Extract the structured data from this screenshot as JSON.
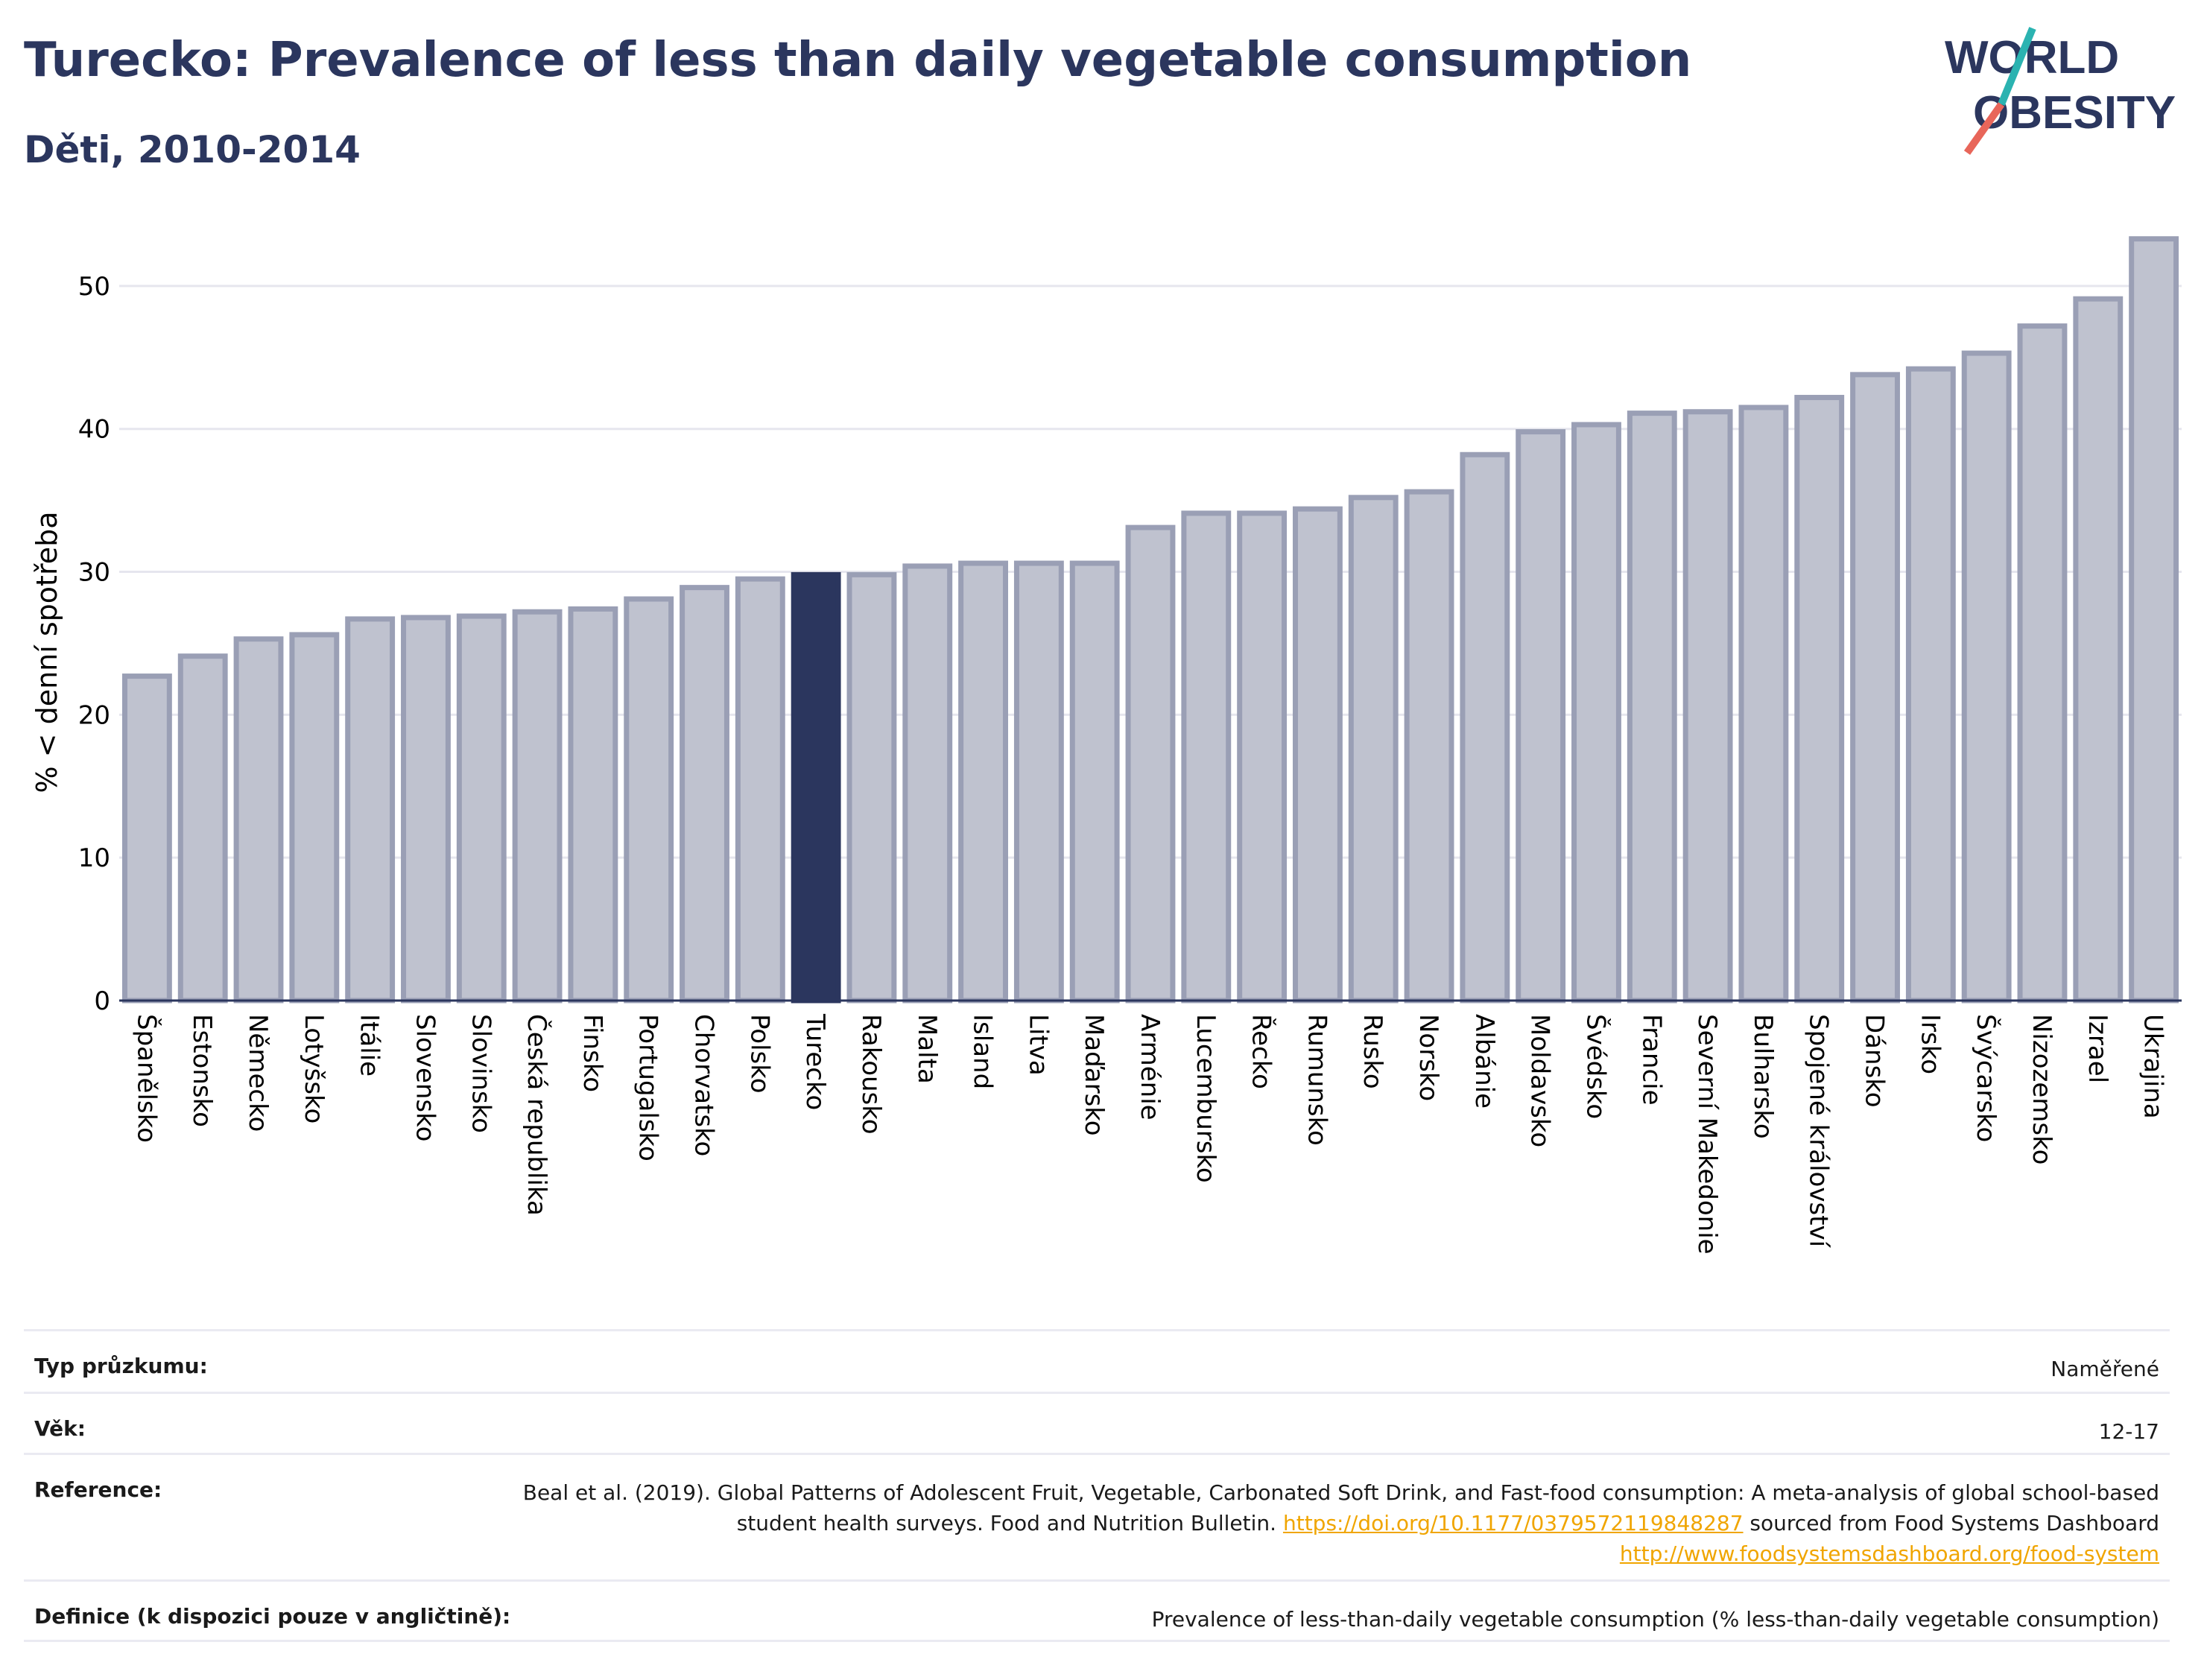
{
  "header": {
    "title": "Turecko: Prevalence of less than daily vegetable consumption",
    "subtitle": "Děti, 2010-2014",
    "logo_line1": "WORLD",
    "logo_line2": "OBESITY"
  },
  "colors": {
    "bar": "#bfc2cf",
    "bar_outline": "#9a9fb5",
    "highlight": "#2b365e",
    "grid": "#e6e6ee",
    "logo_teal": "#2bb3b1",
    "logo_red": "#e8665a"
  },
  "chart_data": {
    "type": "bar",
    "title": "Turecko: Prevalence of less than daily vegetable consumption",
    "subtitle": "Děti, 2010-2014",
    "ylabel": "% < denní spotřeba",
    "xlabel": "",
    "ylim": [
      0,
      55
    ],
    "yticks": [
      0,
      10,
      20,
      30,
      40,
      50
    ],
    "grid": true,
    "highlight": "Turecko",
    "categories": [
      "Španělsko",
      "Estonsko",
      "Německo",
      "Lotyšsko",
      "Itálie",
      "Slovensko",
      "Slovinsko",
      "Česká republika",
      "Finsko",
      "Portugalsko",
      "Chorvatsko",
      "Polsko",
      "Turecko",
      "Rakousko",
      "Malta",
      "Island",
      "Litva",
      "Maďarsko",
      "Arménie",
      "Lucembursko",
      "Řecko",
      "Rumunsko",
      "Rusko",
      "Norsko",
      "Albánie",
      "Moldavsko",
      "Švédsko",
      "Francie",
      "Severní Makedonie",
      "Bulharsko",
      "Spojené království",
      "Dánsko",
      "Irsko",
      "Švýcarsko",
      "Nizozemsko",
      "Izrael",
      "Ukrajina"
    ],
    "values": [
      22.7,
      24.1,
      25.3,
      25.6,
      26.7,
      26.8,
      26.9,
      27.2,
      27.4,
      28.1,
      28.9,
      29.5,
      29.8,
      29.8,
      30.4,
      30.6,
      30.6,
      30.6,
      33.1,
      34.1,
      34.1,
      34.4,
      35.2,
      35.6,
      38.2,
      39.8,
      40.3,
      41.1,
      41.2,
      41.5,
      42.2,
      43.8,
      44.2,
      45.3,
      47.2,
      49.1,
      53.3
    ]
  },
  "info": {
    "survey_label": "Typ průzkumu:",
    "survey_value": "Naměřené",
    "age_label": "Věk:",
    "age_value": "12-17",
    "reference_label": "Reference:",
    "reference_text1": "Beal et al. (2019). Global Patterns of Adolescent Fruit, Vegetable, Carbonated Soft Drink, and Fast-food consumption: A meta-analysis of global school-based student health surveys. Food and Nutrition Bulletin. ",
    "reference_link1": "https://doi.org/10.1177/0379572119848287",
    "reference_text2": " sourced from Food Systems Dashboard ",
    "reference_link2": "http://www.foodsystemsdashboard.org/food-system",
    "definition_label": "Definice (k dispozici pouze v angličtině):",
    "definition_value": "Prevalence of less-than-daily vegetable consumption (% less-than-daily vegetable consumption)"
  }
}
